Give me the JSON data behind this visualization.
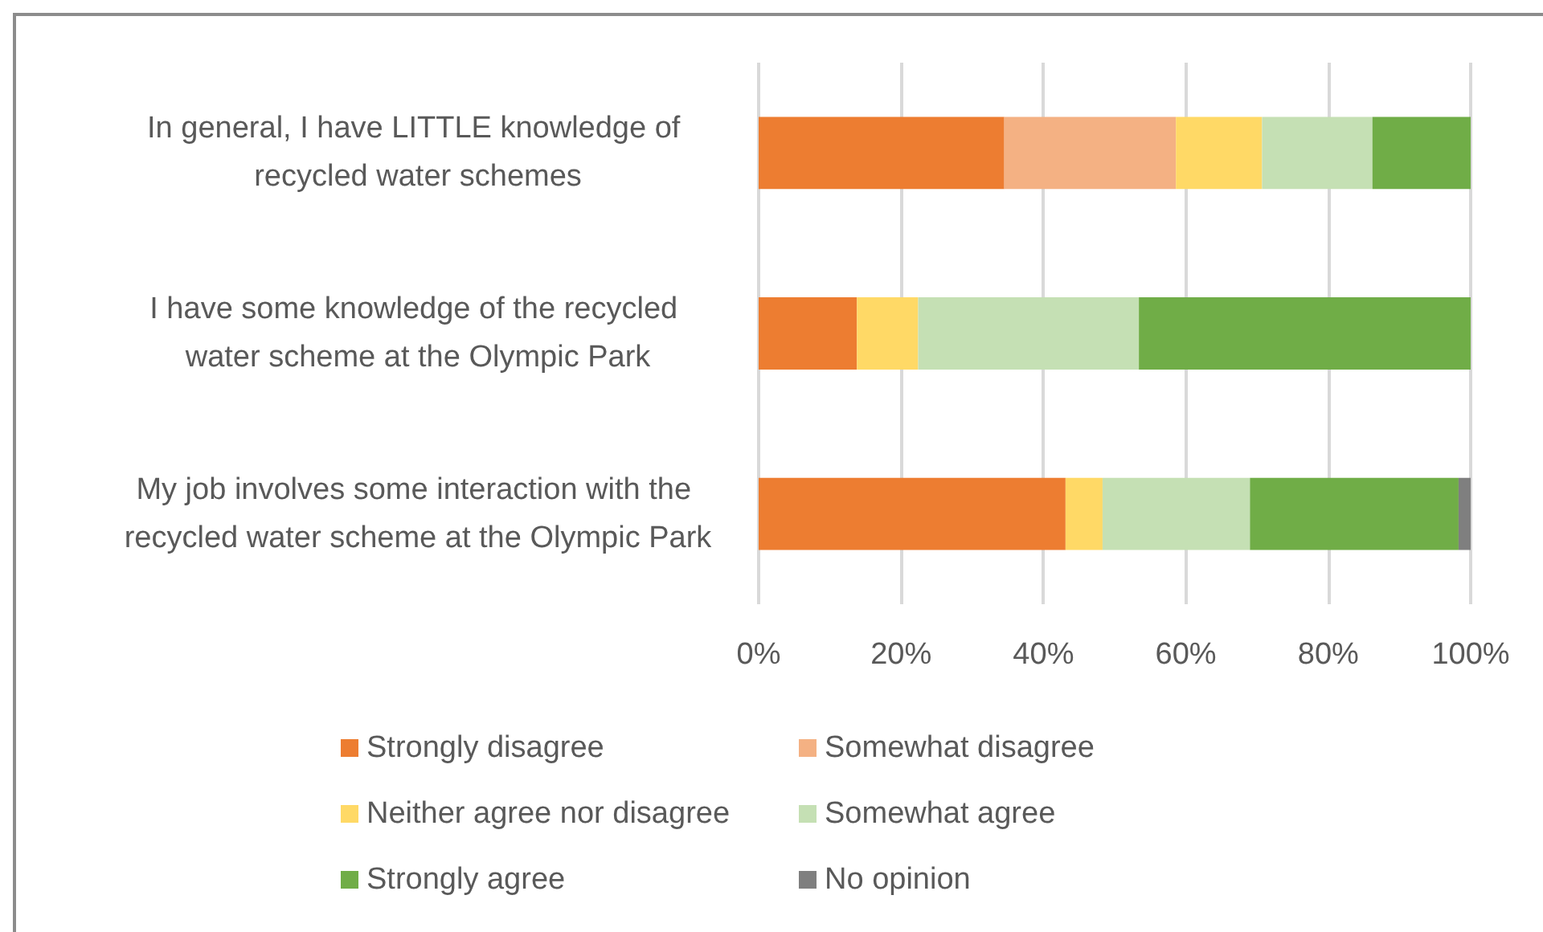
{
  "chart_data": {
    "type": "bar",
    "orientation": "horizontal",
    "stacked": true,
    "categories": [
      "In general, I have LITTLE knowledge of recycled water schemes",
      "I have some knowledge of the recycled water scheme at the Olympic Park",
      "My job involves some interaction with the recycled water scheme at the Olympic Park"
    ],
    "series": [
      {
        "name": "Strongly disagree",
        "color": "#ed7d31",
        "values": [
          34.5,
          13.8,
          43.1
        ]
      },
      {
        "name": "Somewhat disagree",
        "color": "#f4b183",
        "values": [
          24.1,
          null,
          null
        ]
      },
      {
        "name": "Neither agree nor disagree",
        "color": "#ffd966",
        "values": [
          12.1,
          8.6,
          5.2
        ]
      },
      {
        "name": "Somewhat agree",
        "color": "#c5e0b4",
        "values": [
          15.5,
          31.0,
          20.7
        ]
      },
      {
        "name": "Strongly agree",
        "color": "#70ad47",
        "values": [
          13.8,
          46.6,
          29.3
        ]
      },
      {
        "name": "No opinion",
        "color": "#7f7f7f",
        "values": [
          null,
          null,
          1.7
        ]
      }
    ],
    "xlim": [
      0,
      100
    ],
    "xticks": [
      {
        "value": 0,
        "label": "0%"
      },
      {
        "value": 20,
        "label": "20%"
      },
      {
        "value": 40,
        "label": "40%"
      },
      {
        "value": 60,
        "label": "60%"
      },
      {
        "value": 80,
        "label": "80%"
      },
      {
        "value": 100,
        "label": "100%"
      }
    ],
    "grid": "x",
    "legend": "bottom"
  }
}
